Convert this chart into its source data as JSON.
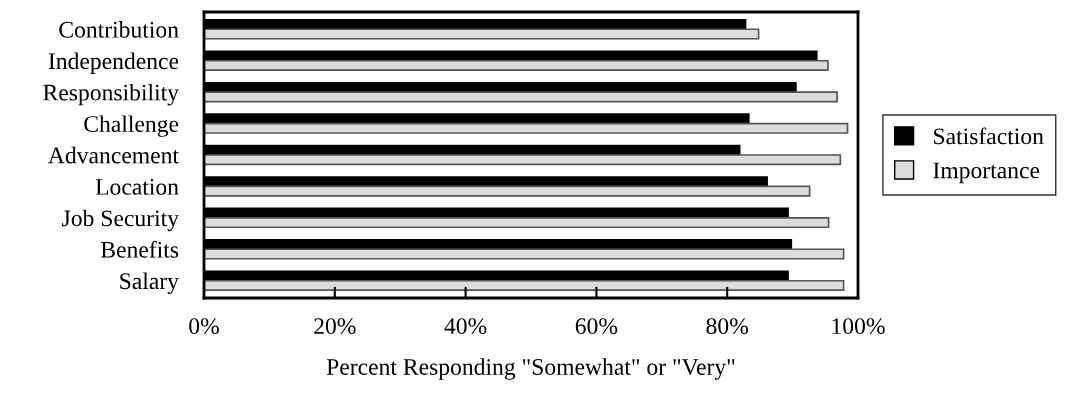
{
  "chart_data": {
    "type": "bar",
    "orientation": "horizontal",
    "xlabel": "Percent Responding \"Somewhat\" or \"Very\"",
    "categories": [
      "Contribution",
      "Independence",
      "Responsibility",
      "Challenge",
      "Advancement",
      "Location",
      "Job Security",
      "Benefits",
      "Salary"
    ],
    "series": [
      {
        "name": "Satisfaction",
        "color": "#000000",
        "values": [
          82.8,
          93.7,
          90.5,
          83.3,
          81.9,
          86.1,
          89.3,
          89.8,
          89.3
        ]
      },
      {
        "name": "Importance",
        "color": "#dddddd",
        "values": [
          84.8,
          95.4,
          96.8,
          98.4,
          97.3,
          92.6,
          95.5,
          97.8,
          97.8
        ]
      }
    ],
    "xlim": [
      0,
      100
    ],
    "xticks": [
      {
        "value": 0,
        "label": "0%"
      },
      {
        "value": 20,
        "label": "20%"
      },
      {
        "value": 40,
        "label": "40%"
      },
      {
        "value": 60,
        "label": "60%"
      },
      {
        "value": 80,
        "label": "80%"
      },
      {
        "value": 100,
        "label": "100%"
      }
    ],
    "grid": false,
    "legend": "right"
  }
}
